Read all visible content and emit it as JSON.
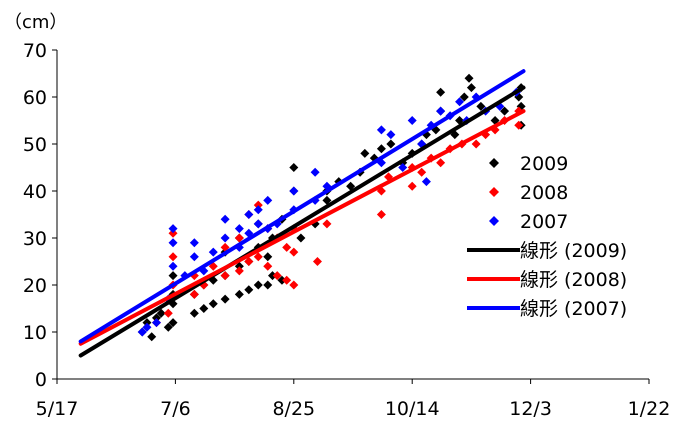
{
  "chart_data": {
    "type": "scatter",
    "unit_label": "（cm）",
    "x_axis": {
      "type": "date",
      "ticks": [
        "5/17",
        "7/6",
        "8/25",
        "10/14",
        "12/3",
        "1/22"
      ],
      "range": [
        "5/17",
        "1/22"
      ]
    },
    "y_axis": {
      "ticks": [
        "0",
        "10",
        "20",
        "30",
        "40",
        "50",
        "60",
        "70"
      ],
      "range": [
        0,
        70
      ]
    },
    "grid": false,
    "legend_position": "right",
    "series": [
      {
        "name": "2009",
        "marker": "diamond",
        "color": "#000000",
        "points": [
          [
            "6/22",
            10
          ],
          [
            "6/24",
            12
          ],
          [
            "6/26",
            9
          ],
          [
            "6/28",
            13
          ],
          [
            "6/30",
            14
          ],
          [
            "7/3",
            11
          ],
          [
            "7/5",
            12
          ],
          [
            "7/5",
            16
          ],
          [
            "7/5",
            18
          ],
          [
            "7/5",
            22
          ],
          [
            "7/14",
            14
          ],
          [
            "7/14",
            18
          ],
          [
            "7/18",
            15
          ],
          [
            "7/18",
            20
          ],
          [
            "7/22",
            16
          ],
          [
            "7/22",
            21
          ],
          [
            "7/27",
            17
          ],
          [
            "7/27",
            22
          ],
          [
            "7/27",
            27
          ],
          [
            "8/2",
            18
          ],
          [
            "8/2",
            24
          ],
          [
            "8/2",
            30
          ],
          [
            "8/6",
            19
          ],
          [
            "8/6",
            25
          ],
          [
            "8/10",
            20
          ],
          [
            "8/10",
            28
          ],
          [
            "8/10",
            33
          ],
          [
            "8/14",
            20
          ],
          [
            "8/14",
            26
          ],
          [
            "8/16",
            22
          ],
          [
            "8/16",
            30
          ],
          [
            "8/20",
            21
          ],
          [
            "8/20",
            34
          ],
          [
            "8/25",
            45
          ],
          [
            "8/25",
            40
          ],
          [
            "8/28",
            30
          ],
          [
            "9/3",
            33
          ],
          [
            "9/8",
            38
          ],
          [
            "9/8",
            40
          ],
          [
            "9/13",
            42
          ],
          [
            "9/18",
            41
          ],
          [
            "9/22",
            44
          ],
          [
            "9/24",
            48
          ],
          [
            "9/28",
            47
          ],
          [
            "10/1",
            49
          ],
          [
            "10/5",
            50
          ],
          [
            "10/10",
            46
          ],
          [
            "10/14",
            48
          ],
          [
            "10/18",
            50
          ],
          [
            "10/20",
            52
          ],
          [
            "10/24",
            53
          ],
          [
            "10/26",
            57
          ],
          [
            "10/26",
            61
          ],
          [
            "11/1",
            52
          ],
          [
            "11/3",
            55
          ],
          [
            "11/5",
            60
          ],
          [
            "11/7",
            64
          ],
          [
            "11/8",
            62
          ],
          [
            "11/12",
            58
          ],
          [
            "11/18",
            55
          ],
          [
            "11/22",
            57
          ],
          [
            "11/28",
            60
          ],
          [
            "11/29",
            62
          ],
          [
            "11/29",
            58
          ],
          [
            "11/29",
            54
          ]
        ]
      },
      {
        "name": "2008",
        "marker": "diamond",
        "color": "#ff0000",
        "points": [
          [
            "6/28",
            12
          ],
          [
            "7/3",
            14
          ],
          [
            "7/5",
            20
          ],
          [
            "7/5",
            26
          ],
          [
            "7/5",
            31
          ],
          [
            "7/14",
            18
          ],
          [
            "7/14",
            22
          ],
          [
            "7/18",
            20
          ],
          [
            "7/22",
            24
          ],
          [
            "7/27",
            22
          ],
          [
            "7/27",
            28
          ],
          [
            "8/2",
            23
          ],
          [
            "8/2",
            30
          ],
          [
            "8/6",
            25
          ],
          [
            "8/6",
            35
          ],
          [
            "8/10",
            26
          ],
          [
            "8/10",
            37
          ],
          [
            "8/14",
            24
          ],
          [
            "8/14",
            32
          ],
          [
            "8/18",
            22
          ],
          [
            "8/18",
            30
          ],
          [
            "8/22",
            21
          ],
          [
            "8/22",
            28
          ],
          [
            "8/25",
            20
          ],
          [
            "8/25",
            27
          ],
          [
            "8/25",
            32
          ],
          [
            "9/4",
            25
          ],
          [
            "9/8",
            33
          ],
          [
            "10/1",
            35
          ],
          [
            "10/1",
            40
          ],
          [
            "10/4",
            43
          ],
          [
            "10/14",
            41
          ],
          [
            "10/14",
            45
          ],
          [
            "10/18",
            44
          ],
          [
            "10/22",
            47
          ],
          [
            "10/26",
            46
          ],
          [
            "10/30",
            49
          ],
          [
            "11/4",
            50
          ],
          [
            "11/10",
            50
          ],
          [
            "11/14",
            52
          ],
          [
            "11/18",
            53
          ],
          [
            "11/22",
            55
          ],
          [
            "11/28",
            54
          ],
          [
            "11/28",
            57
          ]
        ]
      },
      {
        "name": "2007",
        "marker": "diamond",
        "color": "#0000ff",
        "points": [
          [
            "6/22",
            10
          ],
          [
            "6/24",
            11
          ],
          [
            "6/28",
            12
          ],
          [
            "7/3",
            17
          ],
          [
            "7/5",
            24
          ],
          [
            "7/5",
            29
          ],
          [
            "7/5",
            32
          ],
          [
            "7/10",
            22
          ],
          [
            "7/14",
            26
          ],
          [
            "7/14",
            29
          ],
          [
            "7/18",
            23
          ],
          [
            "7/22",
            27
          ],
          [
            "7/27",
            30
          ],
          [
            "7/27",
            34
          ],
          [
            "8/2",
            28
          ],
          [
            "8/2",
            32
          ],
          [
            "8/6",
            31
          ],
          [
            "8/6",
            35
          ],
          [
            "8/10",
            33
          ],
          [
            "8/10",
            36
          ],
          [
            "8/14",
            32
          ],
          [
            "8/14",
            38
          ],
          [
            "8/18",
            33
          ],
          [
            "8/25",
            36
          ],
          [
            "8/25",
            40
          ],
          [
            "9/3",
            38
          ],
          [
            "9/3",
            44
          ],
          [
            "9/8",
            41
          ],
          [
            "10/1",
            46
          ],
          [
            "10/1",
            53
          ],
          [
            "10/5",
            52
          ],
          [
            "10/10",
            45
          ],
          [
            "10/14",
            55
          ],
          [
            "10/18",
            50
          ],
          [
            "10/20",
            42
          ],
          [
            "10/22",
            54
          ],
          [
            "10/26",
            57
          ],
          [
            "10/30",
            56
          ],
          [
            "11/3",
            59
          ],
          [
            "11/6",
            55
          ],
          [
            "11/10",
            60
          ],
          [
            "11/14",
            57
          ],
          [
            "11/20",
            58
          ],
          [
            "11/27",
            61
          ]
        ]
      },
      {
        "name": "線形 (2009)",
        "type": "line",
        "color": "#000000",
        "points": [
          [
            "5/27",
            5
          ],
          [
            "11/30",
            62
          ]
        ]
      },
      {
        "name": "線形 (2008)",
        "type": "line",
        "color": "#ff0000",
        "points": [
          [
            "5/27",
            7.5
          ],
          [
            "11/30",
            57
          ]
        ]
      },
      {
        "name": "線形 (2007)",
        "type": "line",
        "color": "#0000ff",
        "points": [
          [
            "5/27",
            8
          ],
          [
            "11/30",
            65.5
          ]
        ]
      }
    ],
    "legend": [
      {
        "label": "2009",
        "symbol": "diamond",
        "color": "#000000"
      },
      {
        "label": "2008",
        "symbol": "diamond",
        "color": "#ff0000"
      },
      {
        "label": "2007",
        "symbol": "diamond",
        "color": "#0000ff"
      },
      {
        "label": "線形 (2009)",
        "symbol": "line",
        "color": "#000000"
      },
      {
        "label": "線形 (2008)",
        "symbol": "line",
        "color": "#ff0000"
      },
      {
        "label": "線形 (2007)",
        "symbol": "line",
        "color": "#0000ff"
      }
    ]
  }
}
